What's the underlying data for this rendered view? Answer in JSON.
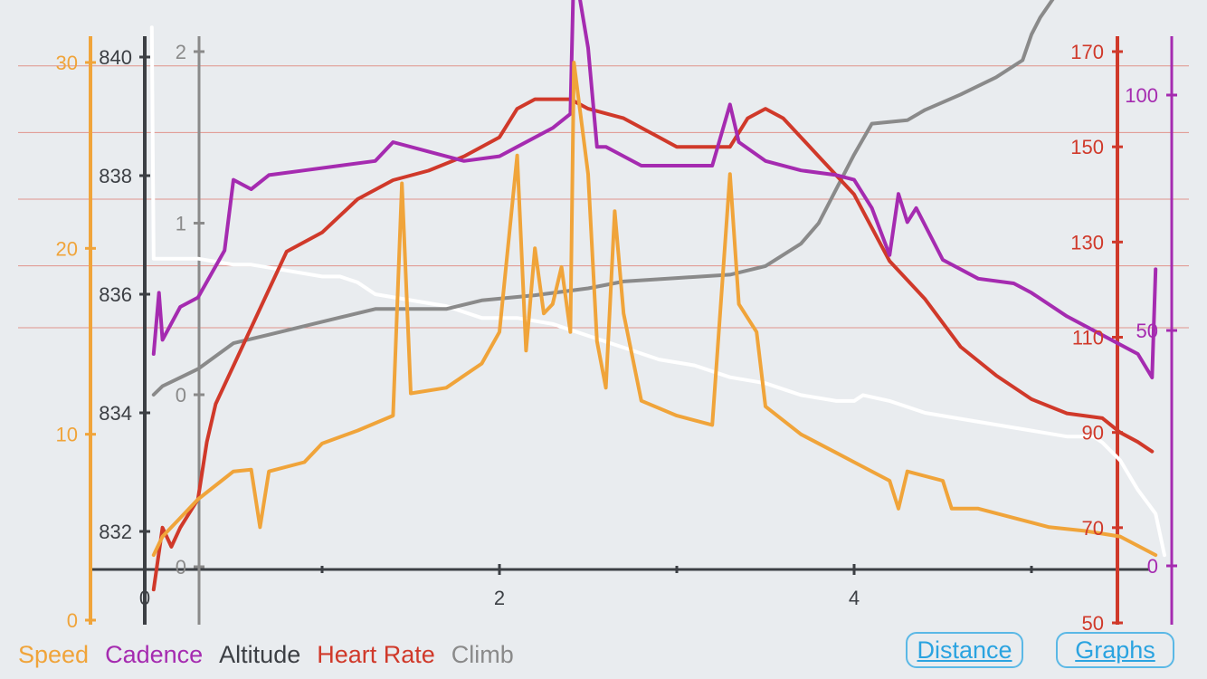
{
  "colors": {
    "speed": "#f0a43a",
    "cadence": "#a52bb0",
    "altitude": "#3c3f44",
    "heart_rate": "#d0392a",
    "climb": "#8a8a8a",
    "altitude_line": "#ffffff",
    "background": "#e9ecef",
    "button": "#2aa3e0"
  },
  "legend": {
    "speed": "Speed",
    "cadence": "Cadence",
    "altitude": "Altitude",
    "heart_rate": "Heart Rate",
    "climb": "Climb"
  },
  "buttons": {
    "distance": "Distance",
    "graphs": "Graphs"
  },
  "chart_data": {
    "type": "line",
    "x": {
      "ticks": [
        0,
        2,
        4
      ],
      "minor_ticks": [
        1,
        3,
        5
      ],
      "range": [
        -0.3,
        5.8
      ]
    },
    "axes": {
      "speed": {
        "ticks": [
          "0",
          "10",
          "20",
          "30"
        ],
        "range": [
          0,
          32
        ]
      },
      "altitude": {
        "ticks": [
          "832",
          "834",
          "836",
          "838",
          "840"
        ],
        "range": [
          831.4,
          840.5
        ]
      },
      "climb": {
        "ticks": [
          "0",
          "0",
          "1",
          "2"
        ],
        "range": [
          -0.02,
          2.1
        ]
      },
      "heart_rate": {
        "ticks": [
          "50",
          "70",
          "90",
          "110",
          "130",
          "150",
          "170"
        ],
        "range": [
          50,
          175
        ]
      },
      "cadence": {
        "ticks": [
          "0",
          "50",
          "100"
        ],
        "range": [
          0,
          110
        ]
      }
    },
    "hr_gridlines": [
      112,
      125,
      139,
      153,
      167
    ],
    "series": [
      {
        "name": "Altitude",
        "axis": "altitude",
        "color_key": "altitude_line",
        "points": [
          [
            0.04,
            840.5
          ],
          [
            0.05,
            836.6
          ],
          [
            0.3,
            836.6
          ],
          [
            0.5,
            836.5
          ],
          [
            0.6,
            836.5
          ],
          [
            0.8,
            836.4
          ],
          [
            1.0,
            836.3
          ],
          [
            1.1,
            836.3
          ],
          [
            1.2,
            836.2
          ],
          [
            1.3,
            836.0
          ],
          [
            1.5,
            835.9
          ],
          [
            1.7,
            835.8
          ],
          [
            1.8,
            835.7
          ],
          [
            1.9,
            835.6
          ],
          [
            2.1,
            835.6
          ],
          [
            2.3,
            835.5
          ],
          [
            2.5,
            835.3
          ],
          [
            2.7,
            835.1
          ],
          [
            2.9,
            834.9
          ],
          [
            3.1,
            834.8
          ],
          [
            3.3,
            834.6
          ],
          [
            3.5,
            834.5
          ],
          [
            3.7,
            834.3
          ],
          [
            3.9,
            834.2
          ],
          [
            4.0,
            834.2
          ],
          [
            4.05,
            834.3
          ],
          [
            4.2,
            834.2
          ],
          [
            4.4,
            834.0
          ],
          [
            4.6,
            833.9
          ],
          [
            4.8,
            833.8
          ],
          [
            5.0,
            833.7
          ],
          [
            5.2,
            833.6
          ],
          [
            5.35,
            833.6
          ],
          [
            5.4,
            833.5
          ],
          [
            5.5,
            833.2
          ],
          [
            5.6,
            832.7
          ],
          [
            5.7,
            832.3
          ],
          [
            5.75,
            831.6
          ]
        ]
      },
      {
        "name": "Climb",
        "axis": "climb",
        "color_key": "climb",
        "points": [
          [
            0.05,
            0.0
          ],
          [
            0.1,
            0.05
          ],
          [
            0.2,
            0.1
          ],
          [
            0.3,
            0.15
          ],
          [
            0.5,
            0.3
          ],
          [
            0.7,
            0.35
          ],
          [
            0.9,
            0.4
          ],
          [
            1.1,
            0.45
          ],
          [
            1.3,
            0.5
          ],
          [
            1.7,
            0.5
          ],
          [
            1.9,
            0.55
          ],
          [
            2.2,
            0.58
          ],
          [
            2.5,
            0.62
          ],
          [
            2.7,
            0.66
          ],
          [
            3.0,
            0.68
          ],
          [
            3.3,
            0.7
          ],
          [
            3.5,
            0.75
          ],
          [
            3.7,
            0.88
          ],
          [
            3.8,
            1.0
          ],
          [
            3.9,
            1.2
          ],
          [
            4.0,
            1.4
          ],
          [
            4.1,
            1.58
          ],
          [
            4.3,
            1.6
          ],
          [
            4.4,
            1.66
          ],
          [
            4.6,
            1.75
          ],
          [
            4.8,
            1.85
          ],
          [
            4.95,
            1.95
          ],
          [
            5.0,
            2.1
          ],
          [
            5.05,
            2.2
          ],
          [
            5.15,
            2.35
          ],
          [
            5.2,
            2.45
          ],
          [
            5.3,
            2.48
          ],
          [
            5.7,
            2.48
          ]
        ]
      },
      {
        "name": "Heart Rate",
        "axis": "heart_rate",
        "color_key": "heart_rate",
        "points": [
          [
            0.05,
            57
          ],
          [
            0.1,
            70
          ],
          [
            0.15,
            66
          ],
          [
            0.2,
            70
          ],
          [
            0.3,
            76
          ],
          [
            0.35,
            88
          ],
          [
            0.4,
            96
          ],
          [
            0.5,
            104
          ],
          [
            0.6,
            112
          ],
          [
            0.7,
            120
          ],
          [
            0.8,
            128
          ],
          [
            1.0,
            132
          ],
          [
            1.2,
            139
          ],
          [
            1.4,
            143
          ],
          [
            1.6,
            145
          ],
          [
            1.8,
            148
          ],
          [
            2.0,
            152
          ],
          [
            2.1,
            158
          ],
          [
            2.2,
            160
          ],
          [
            2.4,
            160
          ],
          [
            2.5,
            158
          ],
          [
            2.7,
            156
          ],
          [
            2.9,
            152
          ],
          [
            3.0,
            150
          ],
          [
            3.2,
            150
          ],
          [
            3.3,
            150
          ],
          [
            3.4,
            156
          ],
          [
            3.5,
            158
          ],
          [
            3.6,
            156
          ],
          [
            3.8,
            148
          ],
          [
            4.0,
            140
          ],
          [
            4.2,
            126
          ],
          [
            4.4,
            118
          ],
          [
            4.6,
            108
          ],
          [
            4.8,
            102
          ],
          [
            5.0,
            97
          ],
          [
            5.2,
            94
          ],
          [
            5.4,
            93
          ],
          [
            5.5,
            90
          ],
          [
            5.6,
            88
          ],
          [
            5.68,
            86
          ]
        ]
      },
      {
        "name": "Cadence",
        "axis": "cadence",
        "color_key": "cadence",
        "points": [
          [
            0.05,
            45
          ],
          [
            0.08,
            58
          ],
          [
            0.1,
            48
          ],
          [
            0.2,
            55
          ],
          [
            0.3,
            57
          ],
          [
            0.45,
            67
          ],
          [
            0.5,
            82
          ],
          [
            0.6,
            80
          ],
          [
            0.7,
            83
          ],
          [
            0.9,
            84
          ],
          [
            1.1,
            85
          ],
          [
            1.3,
            86
          ],
          [
            1.4,
            90
          ],
          [
            1.6,
            88
          ],
          [
            1.8,
            86
          ],
          [
            2.0,
            87
          ],
          [
            2.1,
            89
          ],
          [
            2.3,
            93
          ],
          [
            2.4,
            96
          ],
          [
            2.42,
            128
          ],
          [
            2.5,
            110
          ],
          [
            2.55,
            89
          ],
          [
            2.6,
            89
          ],
          [
            2.65,
            88
          ],
          [
            2.8,
            85
          ],
          [
            3.0,
            85
          ],
          [
            3.2,
            85
          ],
          [
            3.3,
            98
          ],
          [
            3.35,
            90
          ],
          [
            3.5,
            86
          ],
          [
            3.7,
            84
          ],
          [
            3.9,
            83
          ],
          [
            4.0,
            82
          ],
          [
            4.1,
            76
          ],
          [
            4.2,
            66
          ],
          [
            4.25,
            79
          ],
          [
            4.3,
            73
          ],
          [
            4.35,
            76
          ],
          [
            4.5,
            65
          ],
          [
            4.7,
            61
          ],
          [
            4.9,
            60
          ],
          [
            5.0,
            58
          ],
          [
            5.2,
            53
          ],
          [
            5.4,
            49
          ],
          [
            5.6,
            45
          ],
          [
            5.68,
            40
          ],
          [
            5.7,
            63
          ]
        ]
      },
      {
        "name": "Speed",
        "axis": "speed",
        "color_key": "speed",
        "points": [
          [
            0.05,
            3.5
          ],
          [
            0.1,
            4.5
          ],
          [
            0.2,
            5.5
          ],
          [
            0.3,
            6.5
          ],
          [
            0.5,
            8.0
          ],
          [
            0.6,
            8.1
          ],
          [
            0.65,
            5.0
          ],
          [
            0.7,
            8.0
          ],
          [
            0.9,
            8.5
          ],
          [
            1.0,
            9.5
          ],
          [
            1.2,
            10.2
          ],
          [
            1.4,
            11.0
          ],
          [
            1.45,
            23.5
          ],
          [
            1.5,
            12.2
          ],
          [
            1.7,
            12.5
          ],
          [
            1.9,
            13.8
          ],
          [
            2.0,
            15.5
          ],
          [
            2.1,
            25.0
          ],
          [
            2.15,
            14.5
          ],
          [
            2.2,
            20.0
          ],
          [
            2.25,
            16.5
          ],
          [
            2.3,
            17.0
          ],
          [
            2.35,
            19.0
          ],
          [
            2.4,
            15.5
          ],
          [
            2.42,
            30.0
          ],
          [
            2.5,
            24.0
          ],
          [
            2.55,
            15.0
          ],
          [
            2.6,
            12.5
          ],
          [
            2.65,
            22.0
          ],
          [
            2.7,
            16.5
          ],
          [
            2.8,
            11.8
          ],
          [
            3.0,
            11.0
          ],
          [
            3.2,
            10.5
          ],
          [
            3.3,
            24.0
          ],
          [
            3.35,
            17.0
          ],
          [
            3.45,
            15.5
          ],
          [
            3.5,
            11.5
          ],
          [
            3.7,
            10.0
          ],
          [
            3.9,
            9.0
          ],
          [
            4.0,
            8.5
          ],
          [
            4.2,
            7.5
          ],
          [
            4.25,
            6.0
          ],
          [
            4.3,
            8.0
          ],
          [
            4.5,
            7.5
          ],
          [
            4.55,
            6.0
          ],
          [
            4.7,
            6.0
          ],
          [
            4.9,
            5.5
          ],
          [
            5.1,
            5.0
          ],
          [
            5.3,
            4.8
          ],
          [
            5.5,
            4.5
          ],
          [
            5.6,
            4.0
          ],
          [
            5.7,
            3.5
          ]
        ]
      }
    ]
  }
}
